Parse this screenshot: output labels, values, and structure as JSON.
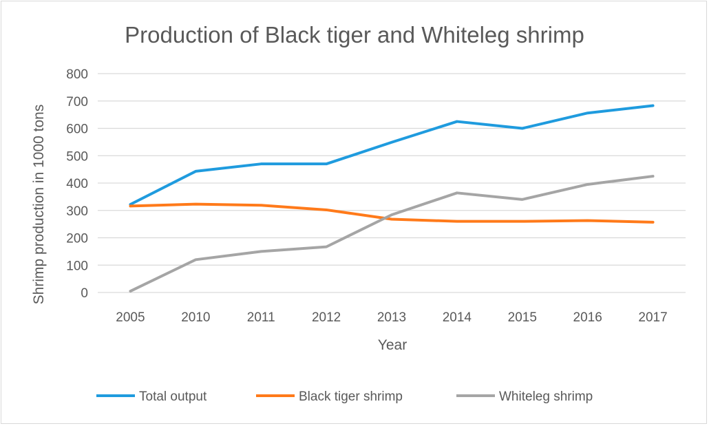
{
  "chart_data": {
    "type": "line",
    "title": "Production of Black tiger and Whiteleg shrimp",
    "xlabel": "Year",
    "ylabel": "Shrimp production in 1000 tons",
    "ylim": [
      0,
      800
    ],
    "yticks": [
      0,
      100,
      200,
      300,
      400,
      500,
      600,
      700,
      800
    ],
    "grid": true,
    "legend": "bottom",
    "categories": [
      "2005",
      "2010",
      "2011",
      "2012",
      "2013",
      "2014",
      "2015",
      "2016",
      "2017"
    ],
    "series": [
      {
        "name": "Total output",
        "color": "#1f9bde",
        "values": [
          322,
          443,
          470,
          470,
          549,
          625,
          600,
          656,
          683
        ]
      },
      {
        "name": "Black tiger shrimp",
        "color": "#ff7a1a",
        "values": [
          316,
          323,
          319,
          302,
          268,
          260,
          260,
          263,
          257
        ]
      },
      {
        "name": "Whiteleg shrimp",
        "color": "#a5a5a5",
        "values": [
          5,
          120,
          150,
          167,
          284,
          364,
          340,
          395,
          425
        ]
      }
    ]
  }
}
